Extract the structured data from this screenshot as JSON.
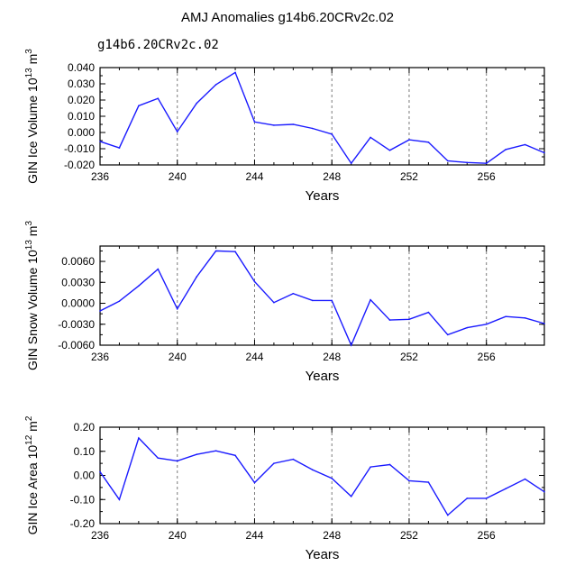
{
  "title": "AMJ Anomalies g14b6.20CRv2c.02",
  "series_label": "g14b6.20CRv2c.02",
  "colors": {
    "line": "#1a1aff",
    "label": "#3b3bf5",
    "axis": "#000000",
    "grid": "#7a7a7a"
  },
  "chart_data": [
    {
      "type": "line",
      "name": "ice-volume",
      "ylabel_main": "GIN Ice Volume 10",
      "ylabel_exp": "13",
      "ylabel_unit": " m",
      "ylabel_unit_exp": "3",
      "xlabel": "Years",
      "xlim": [
        236,
        259
      ],
      "ylim": [
        -0.02,
        0.04
      ],
      "xticks": [
        236,
        240,
        244,
        248,
        252,
        256
      ],
      "xtick_labels": [
        "236",
        "240",
        "244",
        "248",
        "252",
        "256"
      ],
      "yticks": [
        -0.02,
        -0.01,
        0.0,
        0.01,
        0.02,
        0.03,
        0.04
      ],
      "ytick_labels": [
        "-0.020",
        "-0.010",
        "0.000",
        "0.010",
        "0.020",
        "0.030",
        "0.040"
      ],
      "grid_x": [
        240,
        244,
        248,
        252,
        256
      ],
      "x": [
        236,
        237,
        238,
        239,
        240,
        241,
        242,
        243,
        244,
        245,
        246,
        247,
        248,
        249,
        250,
        251,
        252,
        253,
        254,
        255,
        256,
        257,
        258,
        259
      ],
      "values": [
        -0.0055,
        -0.0095,
        0.0165,
        0.021,
        0.0005,
        0.018,
        0.0295,
        0.037,
        0.0065,
        0.0045,
        0.005,
        0.0025,
        -0.001,
        -0.019,
        -0.003,
        -0.011,
        -0.0045,
        -0.006,
        -0.0175,
        -0.0185,
        -0.019,
        -0.0105,
        -0.0075,
        -0.0125
      ]
    },
    {
      "type": "line",
      "name": "snow-volume",
      "ylabel_main": "GIN Snow Volume 10",
      "ylabel_exp": "13",
      "ylabel_unit": " m",
      "ylabel_unit_exp": "3",
      "xlabel": "Years",
      "xlim": [
        236,
        259
      ],
      "ylim": [
        -0.006,
        0.0082
      ],
      "xticks": [
        236,
        240,
        244,
        248,
        252,
        256
      ],
      "xtick_labels": [
        "236",
        "240",
        "244",
        "248",
        "252",
        "256"
      ],
      "yticks": [
        -0.006,
        -0.003,
        0.0,
        0.003,
        0.006
      ],
      "ytick_labels": [
        "-0.0060",
        "-0.0030",
        "0.0000",
        "0.0030",
        "0.0060"
      ],
      "grid_x": [
        240,
        244,
        248,
        252,
        256
      ],
      "x": [
        236,
        237,
        238,
        239,
        240,
        241,
        242,
        243,
        244,
        245,
        246,
        247,
        248,
        249,
        250,
        251,
        252,
        253,
        254,
        255,
        256,
        257,
        258,
        259
      ],
      "values": [
        -0.0011,
        0.0003,
        0.0025,
        0.0049,
        -0.0008,
        0.0038,
        0.0075,
        0.0074,
        0.0031,
        0.0001,
        0.0014,
        0.0004,
        0.0004,
        -0.006,
        0.0005,
        -0.0024,
        -0.0023,
        -0.0013,
        -0.0045,
        -0.0035,
        -0.003,
        -0.0019,
        -0.0021,
        -0.0029
      ]
    },
    {
      "type": "line",
      "name": "ice-area",
      "ylabel_main": "GIN Ice Area 10",
      "ylabel_exp": "12",
      "ylabel_unit": " m",
      "ylabel_unit_exp": "2",
      "xlabel": "Years",
      "xlim": [
        236,
        259
      ],
      "ylim": [
        -0.2,
        0.2
      ],
      "xticks": [
        236,
        240,
        244,
        248,
        252,
        256
      ],
      "xtick_labels": [
        "236",
        "240",
        "244",
        "248",
        "252",
        "256"
      ],
      "yticks": [
        -0.2,
        -0.1,
        0.0,
        0.1,
        0.2
      ],
      "ytick_labels": [
        "-0.20",
        "-0.10",
        "0.00",
        "0.10",
        "0.20"
      ],
      "grid_x": [
        240,
        244,
        248,
        252,
        256
      ],
      "x": [
        236,
        237,
        238,
        239,
        240,
        241,
        242,
        243,
        244,
        245,
        246,
        247,
        248,
        249,
        250,
        251,
        252,
        253,
        254,
        255,
        256,
        257,
        258,
        259
      ],
      "values": [
        0.015,
        -0.1,
        0.155,
        0.072,
        0.06,
        0.087,
        0.102,
        0.083,
        -0.03,
        0.05,
        0.067,
        0.023,
        -0.012,
        -0.087,
        0.035,
        0.045,
        -0.022,
        -0.028,
        -0.165,
        -0.095,
        -0.095,
        -0.055,
        -0.015,
        -0.068
      ]
    }
  ]
}
